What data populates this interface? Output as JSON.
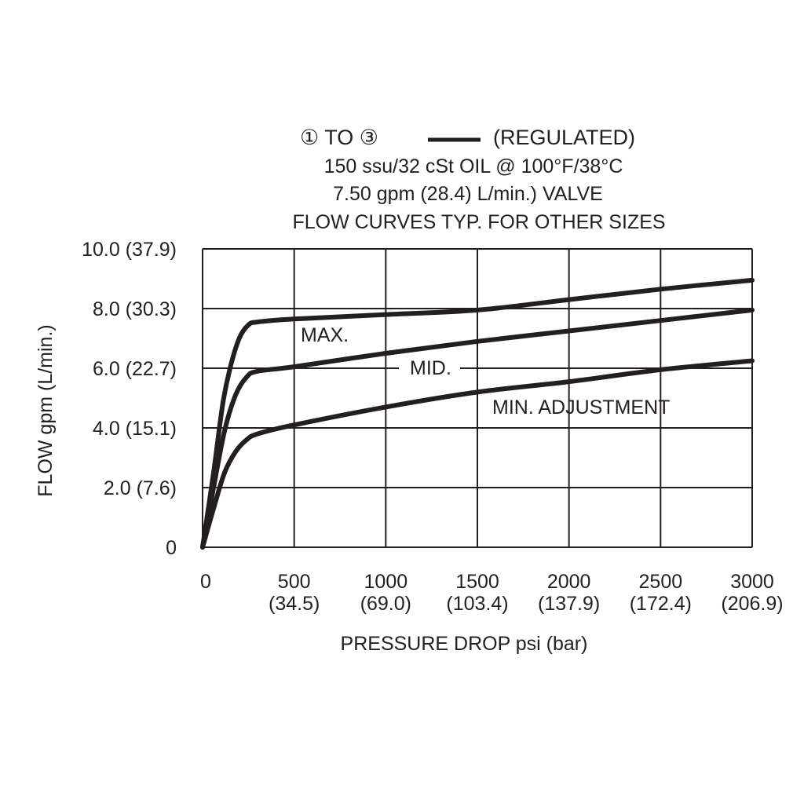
{
  "chart_data": {
    "type": "line",
    "title_lines": [
      "① TO ③",
      "(REGULATED)",
      "150 ssu/32 cSt OIL @ 100°F/38°C",
      "7.50 gpm (28.4) L/min.) VALVE",
      "FLOW CURVES TYP. FOR OTHER SIZES"
    ],
    "xlabel": "PRESSURE DROP psi (bar)",
    "ylabel": "FLOW gpm (L/min.)",
    "xlim": [
      0,
      3000
    ],
    "ylim": [
      0,
      10
    ],
    "grid": true,
    "x_ticks": [
      {
        "value": 0,
        "label": "0",
        "sub": ""
      },
      {
        "value": 500,
        "label": "500",
        "sub": "(34.5)"
      },
      {
        "value": 1000,
        "label": "1000",
        "sub": "(69.0)"
      },
      {
        "value": 1500,
        "label": "1500",
        "sub": "(103.4)"
      },
      {
        "value": 2000,
        "label": "2000",
        "sub": "(137.9)"
      },
      {
        "value": 2500,
        "label": "2500",
        "sub": "(172.4)"
      },
      {
        "value": 3000,
        "label": "3000",
        "sub": "(206.9)"
      }
    ],
    "y_ticks": [
      {
        "value": 0,
        "label": "0"
      },
      {
        "value": 2,
        "label": "2.0 (7.6)"
      },
      {
        "value": 4,
        "label": "4.0 (15.1)"
      },
      {
        "value": 6,
        "label": "6.0 (22.7)"
      },
      {
        "value": 8,
        "label": "8.0 (30.3)"
      },
      {
        "value": 10,
        "label": "10.0 (37.9)"
      }
    ],
    "series": [
      {
        "name": "MAX.",
        "x": [
          0,
          60,
          110,
          150,
          200,
          250,
          300,
          500,
          1000,
          1500,
          2000,
          2500,
          3000
        ],
        "y": [
          0,
          2.5,
          4.8,
          6.0,
          7.0,
          7.45,
          7.55,
          7.65,
          7.8,
          7.95,
          8.3,
          8.65,
          8.95
        ]
      },
      {
        "name": "MID.",
        "x": [
          0,
          60,
          120,
          180,
          240,
          300,
          500,
          1000,
          1500,
          2000,
          2500,
          3000
        ],
        "y": [
          0,
          2.0,
          3.9,
          5.1,
          5.7,
          5.9,
          6.05,
          6.5,
          6.9,
          7.25,
          7.6,
          7.95
        ]
      },
      {
        "name": "MIN. ADJUSTMENT",
        "x": [
          0,
          60,
          120,
          180,
          240,
          300,
          500,
          1000,
          1500,
          2000,
          2500,
          3000
        ],
        "y": [
          0,
          1.3,
          2.5,
          3.2,
          3.6,
          3.8,
          4.1,
          4.7,
          5.2,
          5.55,
          5.95,
          6.25
        ]
      }
    ],
    "line_color": "#231f20"
  }
}
